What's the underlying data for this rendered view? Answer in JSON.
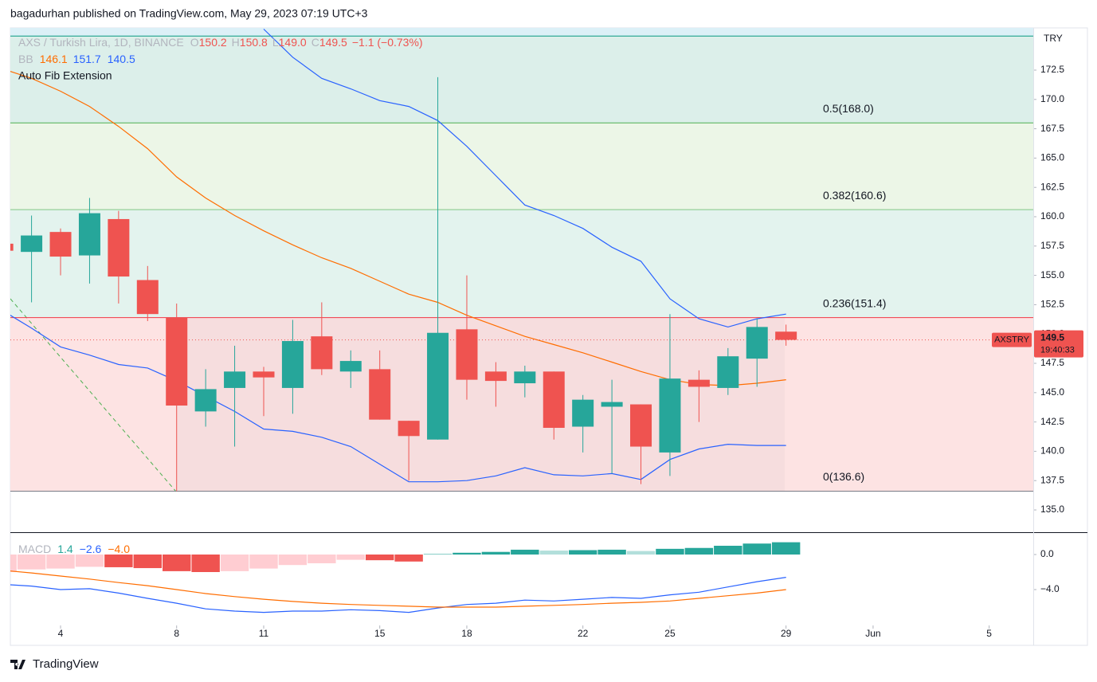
{
  "header": {
    "byline": "bagadurhan published on TradingView.com, May 29, 2023 07:19 UTC+3",
    "footer": "TradingView"
  },
  "chart_data": [
    {
      "type": "candlestick",
      "title": "AXS / Turkish Lira, 1D, BINANCE",
      "legend": [
        {
          "key": "O",
          "value": "150.2"
        },
        {
          "key": "H",
          "value": "150.8"
        },
        {
          "key": "L",
          "value": "149.0"
        },
        {
          "key": "C",
          "value": "149.5"
        }
      ],
      "change": "−1.1 (−0.73%)",
      "up_color": "#26a69a",
      "down_color": "#ef5350",
      "x": [
        2,
        3,
        4,
        5,
        6,
        7,
        8,
        9,
        10,
        11,
        12,
        13,
        14,
        15,
        16,
        17,
        18,
        19,
        20,
        21,
        22,
        23,
        24,
        25,
        26,
        27,
        28,
        29
      ],
      "open": [
        157.7,
        157.0,
        158.7,
        156.7,
        159.8,
        154.6,
        151.4,
        143.4,
        145.4,
        146.8,
        145.4,
        149.8,
        146.8,
        147.0,
        142.6,
        141.0,
        150.4,
        146.8,
        145.8,
        146.8,
        142.1,
        143.8,
        144.0,
        139.9,
        146.1,
        145.4,
        147.9,
        150.2
      ],
      "high": [
        157.8,
        160.1,
        159.0,
        161.6,
        160.5,
        155.8,
        152.6,
        147.0,
        149.0,
        147.2,
        151.2,
        152.7,
        148.6,
        148.6,
        142.6,
        171.9,
        155.0,
        147.6,
        147.3,
        146.8,
        144.8,
        146.1,
        144.0,
        151.7,
        146.9,
        148.8,
        151.3,
        150.8
      ],
      "low": [
        157.1,
        152.7,
        155.0,
        154.3,
        152.6,
        151.1,
        136.6,
        142.1,
        140.4,
        143.0,
        143.2,
        146.5,
        145.4,
        142.7,
        137.5,
        141.0,
        144.4,
        143.8,
        144.6,
        141.0,
        139.9,
        138.1,
        137.2,
        137.9,
        142.5,
        144.8,
        145.5,
        149.0
      ],
      "close": [
        157.1,
        158.4,
        156.6,
        160.3,
        154.9,
        151.7,
        143.9,
        145.3,
        146.8,
        146.3,
        149.4,
        147.0,
        147.7,
        142.7,
        141.3,
        150.1,
        146.1,
        146.0,
        146.8,
        142.0,
        144.4,
        144.2,
        140.4,
        146.2,
        145.5,
        148.1,
        150.6,
        149.5
      ],
      "bb": {
        "label": "BB",
        "basis": {
          "color": "#ff6d00",
          "last": "146.1",
          "values": [
            172.6,
            171.8,
            170.7,
            169.4,
            167.7,
            165.8,
            163.4,
            161.6,
            160.1,
            158.8,
            157.6,
            156.5,
            155.6,
            154.5,
            153.4,
            152.7,
            151.6,
            150.7,
            149.8,
            149.1,
            148.4,
            147.6,
            146.8,
            146.1,
            145.7,
            145.6,
            145.8,
            146.1
          ]
        },
        "upper": {
          "color": "#2962ff",
          "last": "151.7",
          "values": [
            null,
            null,
            null,
            null,
            null,
            null,
            null,
            null,
            null,
            176.0,
            173.6,
            171.8,
            170.9,
            169.9,
            169.4,
            168.2,
            166.0,
            163.5,
            161.0,
            160.1,
            159.0,
            157.4,
            156.2,
            153.0,
            151.3,
            150.6,
            151.3,
            151.7
          ]
        },
        "lower": {
          "color": "#2962ff",
          "last": "140.5",
          "values": [
            152.0,
            150.5,
            148.9,
            148.2,
            147.4,
            147.1,
            146.0,
            144.7,
            143.4,
            141.9,
            141.7,
            141.2,
            140.4,
            138.9,
            137.4,
            137.4,
            137.5,
            137.9,
            138.6,
            138.0,
            137.9,
            138.1,
            137.6,
            139.3,
            140.2,
            140.6,
            140.5,
            140.5
          ]
        }
      },
      "fib": {
        "label": "Auto Fib Extension",
        "levels": [
          {
            "value": 136.6,
            "label": "0(136.6)",
            "color": "#787b86"
          },
          {
            "value": 151.4,
            "label": "0.236(151.4)",
            "color": "#f23645"
          },
          {
            "value": 160.6,
            "label": "0.382(160.6)",
            "color": "#81c784"
          },
          {
            "value": 168.0,
            "label": "0.5(168.0)",
            "color": "#4caf50"
          },
          {
            "value": 175.4,
            "color": "#089981"
          }
        ],
        "zone_colors": [
          "#fde3e3",
          "#e3f3ee",
          "#ecf6e7",
          "#dcefea",
          "#dcf0f7"
        ]
      },
      "price_marker": {
        "value": 149.5,
        "countdown": "19:40:33",
        "symbol": "AXSTRY",
        "color": "#ef5350"
      },
      "axis_unit": "TRY",
      "xlim": [
        2.27,
        37.52
      ],
      "xticks": [
        4,
        8,
        11,
        15,
        18,
        22,
        25,
        29,
        {
          "value": 32,
          "label": "Jun"
        },
        {
          "value": 36,
          "label": "5"
        }
      ],
      "ylim": [
        133.1,
        176.1
      ],
      "yticks": [
        {
          "value": 135,
          "label": "135.0"
        },
        137.5,
        {
          "value": 140,
          "label": "140.0"
        },
        142.5,
        {
          "value": 145,
          "label": "145.0"
        },
        147.5,
        {
          "value": 150,
          "label": "150.0"
        },
        152.5,
        {
          "value": 155,
          "label": "155.0"
        },
        157.5,
        {
          "value": 160,
          "label": "160.0"
        },
        162.5,
        {
          "value": 165,
          "label": "165.0"
        },
        167.5,
        {
          "value": 170,
          "label": "170.0"
        },
        172.5
      ]
    },
    {
      "type": "macd",
      "title": "MACD",
      "x": [
        2,
        3,
        4,
        5,
        6,
        7,
        8,
        9,
        10,
        11,
        12,
        13,
        14,
        15,
        16,
        17,
        18,
        19,
        20,
        21,
        22,
        23,
        24,
        25,
        26,
        27,
        28,
        29
      ],
      "histogram": [
        -2.0,
        -1.7,
        -1.6,
        -1.4,
        -1.45,
        -1.55,
        -1.9,
        -2.0,
        -1.9,
        -1.6,
        -1.2,
        -1.0,
        -0.6,
        -0.65,
        -0.8,
        0.05,
        0.2,
        0.3,
        0.55,
        0.45,
        0.5,
        0.55,
        0.4,
        0.65,
        0.75,
        1.0,
        1.25,
        1.4
      ],
      "macd": [
        -3.4,
        -3.6,
        -4.0,
        -3.9,
        -4.4,
        -5.0,
        -5.55,
        -6.2,
        -6.45,
        -6.6,
        -6.45,
        -6.45,
        -6.3,
        -6.4,
        -6.6,
        -6.1,
        -5.7,
        -5.55,
        -5.2,
        -5.3,
        -5.1,
        -4.9,
        -5.0,
        -4.6,
        -4.3,
        -3.7,
        -3.1,
        -2.6
      ],
      "signal": [
        -1.8,
        -2.1,
        -2.45,
        -2.8,
        -3.2,
        -3.55,
        -4.0,
        -4.45,
        -4.8,
        -5.1,
        -5.35,
        -5.55,
        -5.7,
        -5.8,
        -5.9,
        -6.0,
        -6.0,
        -6.0,
        -5.9,
        -5.8,
        -5.7,
        -5.55,
        -5.45,
        -5.3,
        -5.0,
        -4.7,
        -4.4,
        -4.0
      ],
      "legend_values": [
        "1.4",
        "−2.6",
        "−4.0"
      ],
      "hist_colors": {
        "up_rising": "#26a69a",
        "up_falling": "#b2dfdb",
        "down_falling": "#ef5350",
        "down_rising": "#ffcdd2"
      },
      "macd_color": "#2962ff",
      "signal_color": "#ff6d00",
      "ylim": [
        -8.09,
        2.545
      ],
      "yticks": [
        {
          "value": 0,
          "label": "0.0"
        },
        {
          "value": -4,
          "label": "−4.0"
        }
      ]
    }
  ]
}
